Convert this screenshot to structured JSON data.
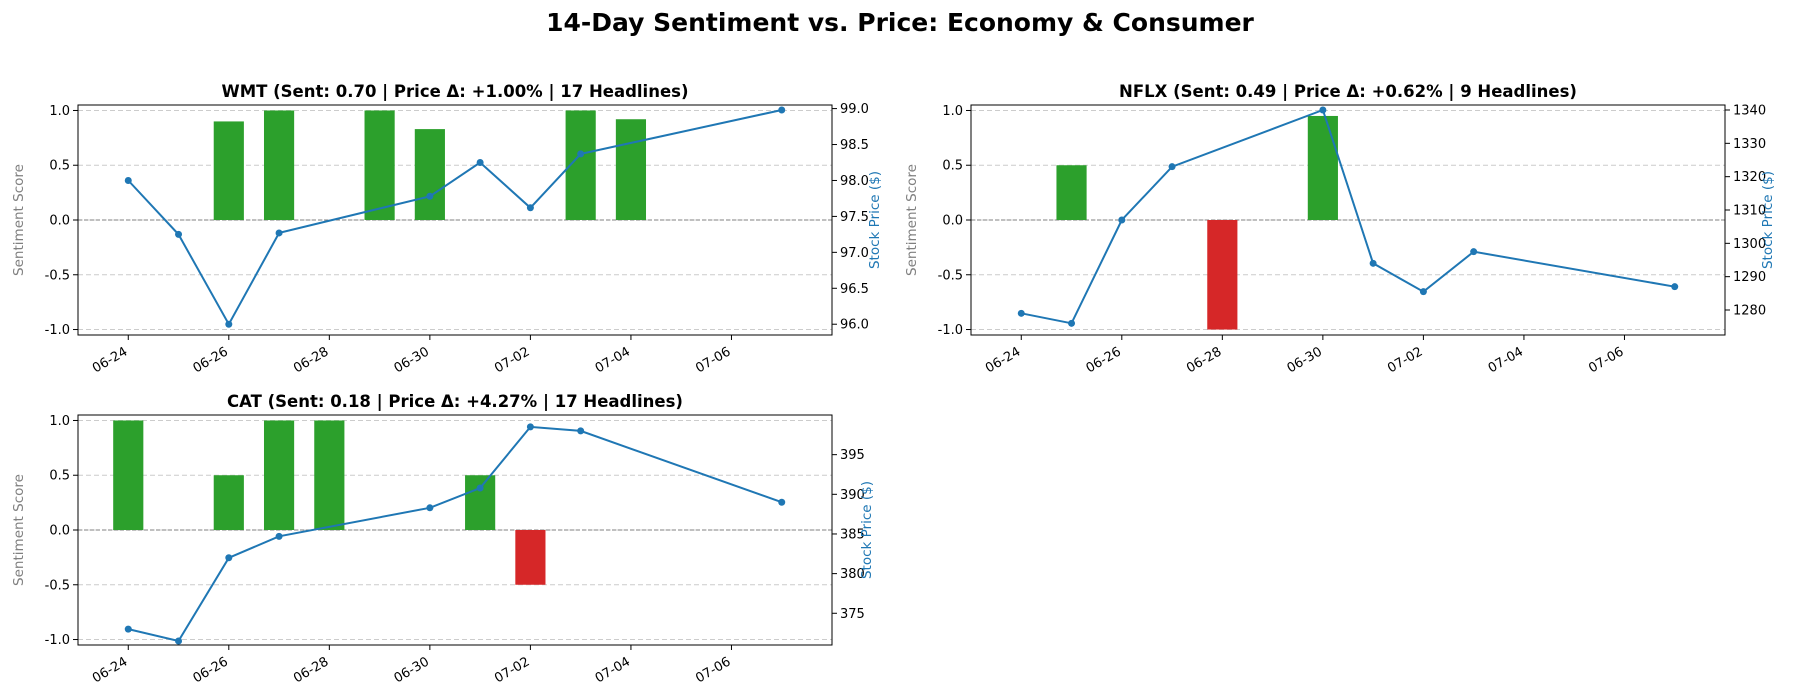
{
  "figure": {
    "title": "14-Day Sentiment vs. Price: Economy & Consumer",
    "colors": {
      "positive": "#2ca02c",
      "negative": "#d62728",
      "price": "#1f77b4",
      "label_gray": "#808080"
    }
  },
  "chart_data": [
    {
      "type": "bar",
      "secondary_type": "line",
      "title": "WMT (Sent: 0.70 | Price Δ: +1.00% | 17 Headlines)",
      "ylabel": "Sentiment Score",
      "y2label": "Stock Price ($)",
      "ylim": [
        -1.05,
        1.05
      ],
      "yticks": [
        "1.0",
        "0.5",
        "0.0",
        "-0.5",
        "-1.0"
      ],
      "y2lim": [
        95.85,
        99.05
      ],
      "y2ticks": [
        "99.0",
        "98.5",
        "98.0",
        "97.5",
        "97.0",
        "96.5",
        "96.0"
      ],
      "xticks": [
        "06-24",
        "06-26",
        "06-28",
        "06-30",
        "07-02",
        "07-04",
        "07-06"
      ],
      "grid": true,
      "sentiment": [
        {
          "date": "2025-06-26",
          "value": 0.9
        },
        {
          "date": "2025-06-27",
          "value": 1.0
        },
        {
          "date": "2025-06-29",
          "value": 1.0
        },
        {
          "date": "2025-06-30",
          "value": 0.83
        },
        {
          "date": "2025-07-03",
          "value": 1.0
        },
        {
          "date": "2025-07-04",
          "value": 0.92
        }
      ],
      "price": [
        {
          "date": "2025-06-24",
          "value": 98.0
        },
        {
          "date": "2025-06-25",
          "value": 97.25
        },
        {
          "date": "2025-06-26",
          "value": 96.0
        },
        {
          "date": "2025-06-27",
          "value": 97.27
        },
        {
          "date": "2025-06-30",
          "value": 97.78
        },
        {
          "date": "2025-07-01",
          "value": 98.25
        },
        {
          "date": "2025-07-02",
          "value": 97.62
        },
        {
          "date": "2025-07-03",
          "value": 98.37
        },
        {
          "date": "2025-07-07",
          "value": 98.98
        }
      ]
    },
    {
      "type": "bar",
      "secondary_type": "line",
      "title": "NFLX (Sent: 0.49 | Price Δ: +0.62% | 9 Headlines)",
      "ylabel": "Sentiment Score",
      "y2label": "Stock Price ($)",
      "ylim": [
        -1.05,
        1.05
      ],
      "yticks": [
        "1.0",
        "0.5",
        "0.0",
        "-0.5",
        "-1.0"
      ],
      "y2lim": [
        1272.5,
        1341.5
      ],
      "y2ticks": [
        "1340",
        "1330",
        "1320",
        "1310",
        "1300",
        "1290",
        "1280"
      ],
      "xticks": [
        "06-24",
        "06-26",
        "06-28",
        "06-30",
        "07-02",
        "07-04",
        "07-06"
      ],
      "grid": true,
      "sentiment": [
        {
          "date": "2025-06-25",
          "value": 0.5
        },
        {
          "date": "2025-06-28",
          "value": -1.0
        },
        {
          "date": "2025-06-30",
          "value": 0.95
        }
      ],
      "price": [
        {
          "date": "2025-06-24",
          "value": 1279
        },
        {
          "date": "2025-06-25",
          "value": 1276
        },
        {
          "date": "2025-06-26",
          "value": 1307
        },
        {
          "date": "2025-06-27",
          "value": 1323
        },
        {
          "date": "2025-06-30",
          "value": 1340
        },
        {
          "date": "2025-07-01",
          "value": 1294
        },
        {
          "date": "2025-07-02",
          "value": 1285.5
        },
        {
          "date": "2025-07-03",
          "value": 1297.5
        },
        {
          "date": "2025-07-07",
          "value": 1287
        }
      ]
    },
    {
      "type": "bar",
      "secondary_type": "line",
      "title": "CAT (Sent: 0.18 | Price Δ: +4.27% | 17 Headlines)",
      "ylabel": "Sentiment Score",
      "y2label": "Stock Price ($)",
      "ylim": [
        -1.05,
        1.05
      ],
      "yticks": [
        "1.0",
        "0.5",
        "0.0",
        "-0.5",
        "-1.0"
      ],
      "y2lim": [
        371.0,
        400.0
      ],
      "y2ticks": [
        "395",
        "390",
        "385",
        "380",
        "375"
      ],
      "xticks": [
        "06-24",
        "06-26",
        "06-28",
        "06-30",
        "07-02",
        "07-04",
        "07-06"
      ],
      "grid": true,
      "sentiment": [
        {
          "date": "2025-06-24",
          "value": 1.0
        },
        {
          "date": "2025-06-26",
          "value": 0.5
        },
        {
          "date": "2025-06-27",
          "value": 1.0
        },
        {
          "date": "2025-06-28",
          "value": 1.0
        },
        {
          "date": "2025-07-01",
          "value": 0.5
        },
        {
          "date": "2025-07-02",
          "value": -0.5
        }
      ],
      "price": [
        {
          "date": "2025-06-24",
          "value": 373
        },
        {
          "date": "2025-06-25",
          "value": 371.5
        },
        {
          "date": "2025-06-26",
          "value": 382
        },
        {
          "date": "2025-06-27",
          "value": 384.7
        },
        {
          "date": "2025-06-30",
          "value": 388.3
        },
        {
          "date": "2025-07-01",
          "value": 390.8
        },
        {
          "date": "2025-07-02",
          "value": 398.5
        },
        {
          "date": "2025-07-03",
          "value": 398
        },
        {
          "date": "2025-07-07",
          "value": 389
        }
      ]
    }
  ]
}
